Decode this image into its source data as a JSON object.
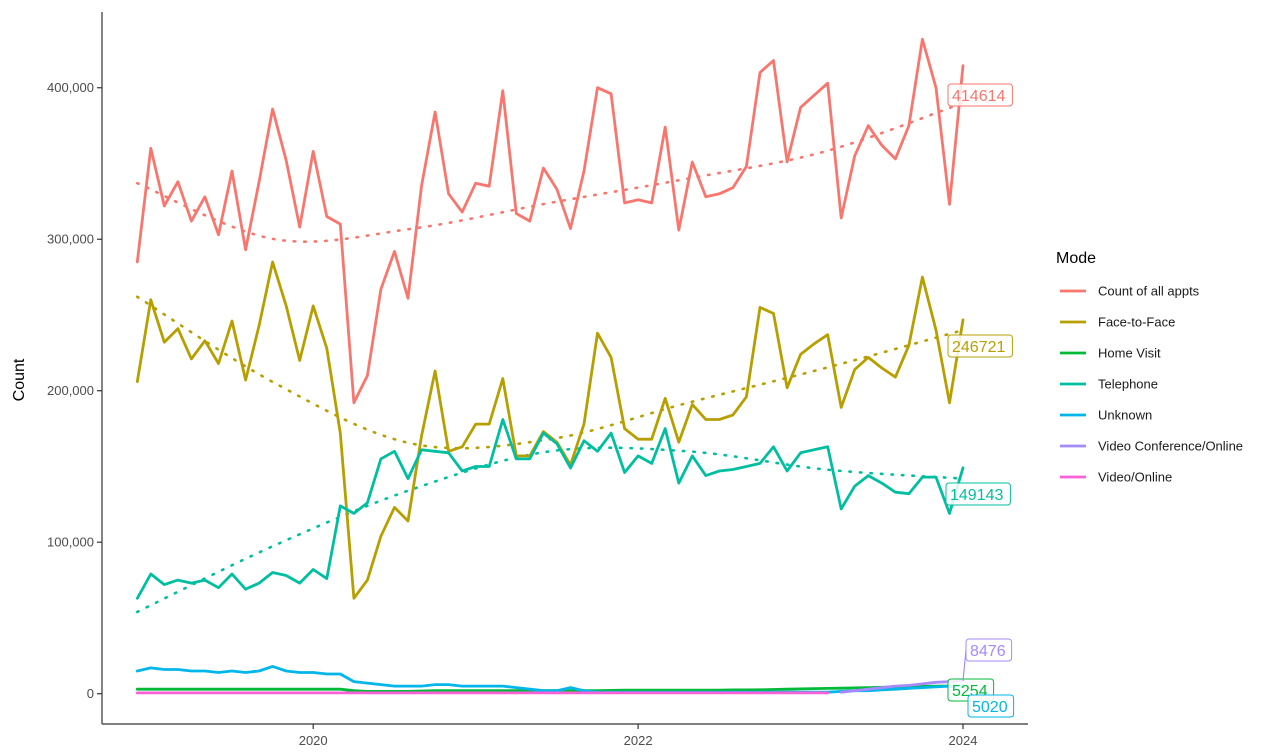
{
  "chart_data": {
    "type": "line",
    "ylabel": "Count",
    "xlabel": "",
    "x_tick_labels": [
      "2020",
      "2022",
      "2024"
    ],
    "x_ticks": [
      2020,
      2022,
      2024
    ],
    "y_tick_labels": [
      "0",
      "100,000",
      "200,000",
      "300,000",
      "400,000"
    ],
    "y_ticks": [
      0,
      100000,
      200000,
      300000,
      400000
    ],
    "xlim": [
      2018.7,
      2024.4
    ],
    "ylim": [
      -20000,
      450000
    ],
    "grid": false,
    "legend": {
      "title": "Mode",
      "position": "right",
      "entries": [
        "Count of all appts",
        "Face-to-Face",
        "Home Visit",
        "Telephone",
        "Unknown",
        "Video Conference/Online",
        "Video/Online"
      ]
    },
    "x_start": 2018.917,
    "x_step": 0.08333,
    "series": [
      {
        "name": "Count of all appts",
        "color": "#F8766D",
        "values": [
          285000,
          360000,
          322000,
          338000,
          312000,
          328000,
          303000,
          345000,
          293000,
          338000,
          386000,
          352000,
          308000,
          358000,
          315000,
          310000,
          192000,
          210000,
          267000,
          292000,
          261000,
          335000,
          384000,
          330000,
          318000,
          337000,
          335000,
          398000,
          317000,
          312000,
          347000,
          333000,
          307000,
          345000,
          400000,
          396000,
          324000,
          326000,
          324000,
          374000,
          306000,
          351000,
          328000,
          330000,
          334000,
          348000,
          410000,
          418000,
          351000,
          387000,
          395000,
          403000,
          314000,
          355000,
          375000,
          362000,
          353000,
          375000,
          432000,
          400000,
          323000,
          414614
        ],
        "end_label": "414614",
        "trend": [
          337000,
          300000,
          307000,
          324000,
          340000,
          358000,
          390000
        ]
      },
      {
        "name": "Face-to-Face",
        "color": "#B79F00",
        "values": [
          206000,
          260000,
          232000,
          241000,
          221000,
          233000,
          218000,
          246000,
          207000,
          243000,
          285000,
          256000,
          220000,
          256000,
          228000,
          172000,
          63000,
          75000,
          104000,
          123000,
          114000,
          170000,
          213000,
          160000,
          163000,
          178000,
          178000,
          208000,
          157000,
          157000,
          173000,
          166000,
          151000,
          178000,
          238000,
          222000,
          175000,
          168000,
          168000,
          195000,
          166000,
          191000,
          181000,
          181000,
          184000,
          196000,
          255000,
          251000,
          202000,
          224000,
          231000,
          237000,
          189000,
          214000,
          222000,
          215000,
          209000,
          230000,
          275000,
          240000,
          192000,
          246721
        ],
        "end_label": "246721",
        "trend": [
          262000,
          205000,
          165000,
          168000,
          192000,
          215000,
          240000
        ]
      },
      {
        "name": "Home Visit",
        "color": "#00BA38",
        "values": [
          3000,
          3000,
          3000,
          3000,
          3000,
          3000,
          3000,
          3000,
          3000,
          3000,
          3000,
          3000,
          3000,
          3000,
          3000,
          3000,
          2000,
          1500,
          1500,
          1500,
          1500,
          1800,
          2000,
          2000,
          2000,
          2000,
          2000,
          2000,
          2000,
          2000,
          2000,
          2000,
          2000,
          2000,
          2000,
          2200,
          2300,
          2300,
          2300,
          2300,
          2300,
          2400,
          2400,
          2400,
          2500,
          2500,
          2600,
          2800,
          3000,
          3200,
          3400,
          3500,
          3600,
          3800,
          4000,
          4200,
          4400,
          4600,
          4800,
          5000,
          5100,
          5254
        ],
        "end_label": "5254",
        "trend": null
      },
      {
        "name": "Telephone",
        "color": "#00BFA0",
        "values": [
          63000,
          79000,
          72000,
          75000,
          73000,
          75000,
          70000,
          79000,
          69000,
          73000,
          80000,
          78000,
          73000,
          82000,
          76000,
          124000,
          119000,
          126000,
          155000,
          160000,
          142000,
          161000,
          160000,
          159000,
          147000,
          150000,
          150000,
          181000,
          155000,
          155000,
          172000,
          165000,
          149000,
          167000,
          160000,
          172000,
          146000,
          157000,
          152000,
          175000,
          139000,
          157000,
          144000,
          147000,
          148000,
          150000,
          152000,
          163000,
          147000,
          159000,
          161000,
          163000,
          122000,
          137000,
          144000,
          139000,
          133000,
          132000,
          143000,
          143000,
          119000,
          149143
        ],
        "end_label": "149143",
        "trend": [
          54000,
          98000,
          135000,
          160000,
          160000,
          148000,
          142000
        ]
      },
      {
        "name": "Unknown",
        "color": "#00B6EB",
        "values": [
          15000,
          17000,
          16000,
          16000,
          15000,
          15000,
          14000,
          15000,
          14000,
          15000,
          18000,
          15000,
          14000,
          14000,
          13000,
          13000,
          8000,
          7000,
          6000,
          5000,
          5000,
          5000,
          6000,
          6000,
          5000,
          5000,
          5000,
          5000,
          4000,
          3000,
          2000,
          2000,
          4000,
          2000,
          1000,
          1000,
          1000,
          1000,
          1000,
          1000,
          1000,
          1000,
          1000,
          1000,
          1000,
          1000,
          1000,
          1000,
          1000,
          1000,
          1000,
          1000,
          1500,
          2000,
          2000,
          2500,
          3000,
          3500,
          4000,
          4500,
          5000,
          5020
        ],
        "end_label": "5020",
        "trend": null
      },
      {
        "name": "Video Conference/Online",
        "color": "#A58AFF",
        "values": [
          null,
          null,
          null,
          null,
          null,
          null,
          null,
          null,
          null,
          null,
          null,
          null,
          null,
          null,
          null,
          null,
          null,
          null,
          null,
          null,
          null,
          null,
          null,
          null,
          null,
          null,
          null,
          null,
          null,
          null,
          null,
          null,
          null,
          null,
          null,
          null,
          null,
          null,
          null,
          null,
          null,
          null,
          null,
          null,
          null,
          null,
          null,
          null,
          null,
          null,
          null,
          null,
          1000,
          2000,
          3000,
          4000,
          5000,
          5500,
          6500,
          7500,
          8000,
          8476
        ],
        "end_label": "8476",
        "trend": null
      },
      {
        "name": "Video/Online",
        "color": "#FB61D7",
        "values": [
          500,
          500,
          500,
          500,
          500,
          500,
          500,
          500,
          500,
          500,
          500,
          500,
          500,
          500,
          500,
          500,
          500,
          500,
          500,
          500,
          500,
          500,
          500,
          500,
          500,
          500,
          500,
          500,
          500,
          500,
          500,
          500,
          500,
          500,
          500,
          500,
          500,
          500,
          500,
          500,
          500,
          500,
          500,
          500,
          500,
          500,
          500,
          500,
          500,
          500,
          500,
          500,
          null,
          null,
          null,
          null,
          null,
          null,
          null,
          null,
          null,
          null
        ],
        "end_label": "",
        "trend": null
      }
    ]
  }
}
